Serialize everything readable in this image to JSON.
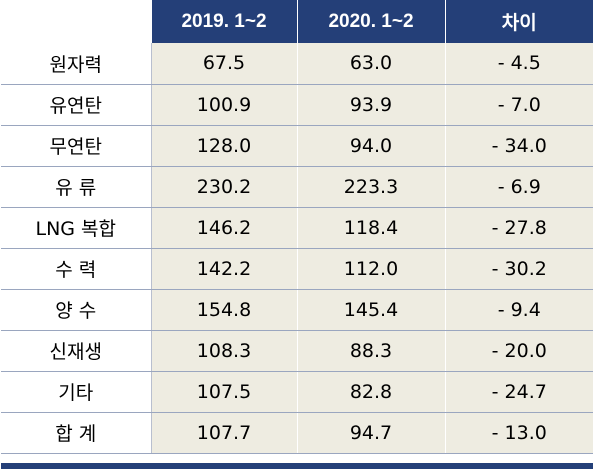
{
  "table": {
    "headers": [
      "",
      "2019. 1~2",
      "2020. 1~2",
      "차이"
    ],
    "rows": [
      {
        "label": "원자력",
        "v2019": "67.5",
        "v2020": "63.0",
        "diff": "- 4.5"
      },
      {
        "label": "유연탄",
        "v2019": "100.9",
        "v2020": "93.9",
        "diff": "- 7.0"
      },
      {
        "label": "무연탄",
        "v2019": "128.0",
        "v2020": "94.0",
        "diff": "- 34.0"
      },
      {
        "label": "유 류",
        "v2019": "230.2",
        "v2020": "223.3",
        "diff": "- 6.9"
      },
      {
        "label": "LNG 복합",
        "v2019": "146.2",
        "v2020": "118.4",
        "diff": "- 27.8"
      },
      {
        "label": "수 력",
        "v2019": "142.2",
        "v2020": "112.0",
        "diff": "- 30.2"
      },
      {
        "label": "양 수",
        "v2019": "154.8",
        "v2020": "145.4",
        "diff": "- 9.4"
      },
      {
        "label": "신재생",
        "v2019": "108.3",
        "v2020": "88.3",
        "diff": "- 20.0"
      },
      {
        "label": "기타",
        "v2019": "107.5",
        "v2020": "82.8",
        "diff": "- 24.7"
      },
      {
        "label": "합 계",
        "v2019": "107.7",
        "v2020": "94.7",
        "diff": "- 13.0"
      }
    ]
  },
  "colors": {
    "header_bg": "#243f78",
    "header_text": "#ffffff",
    "value_cell_bg": "#eeece1"
  }
}
